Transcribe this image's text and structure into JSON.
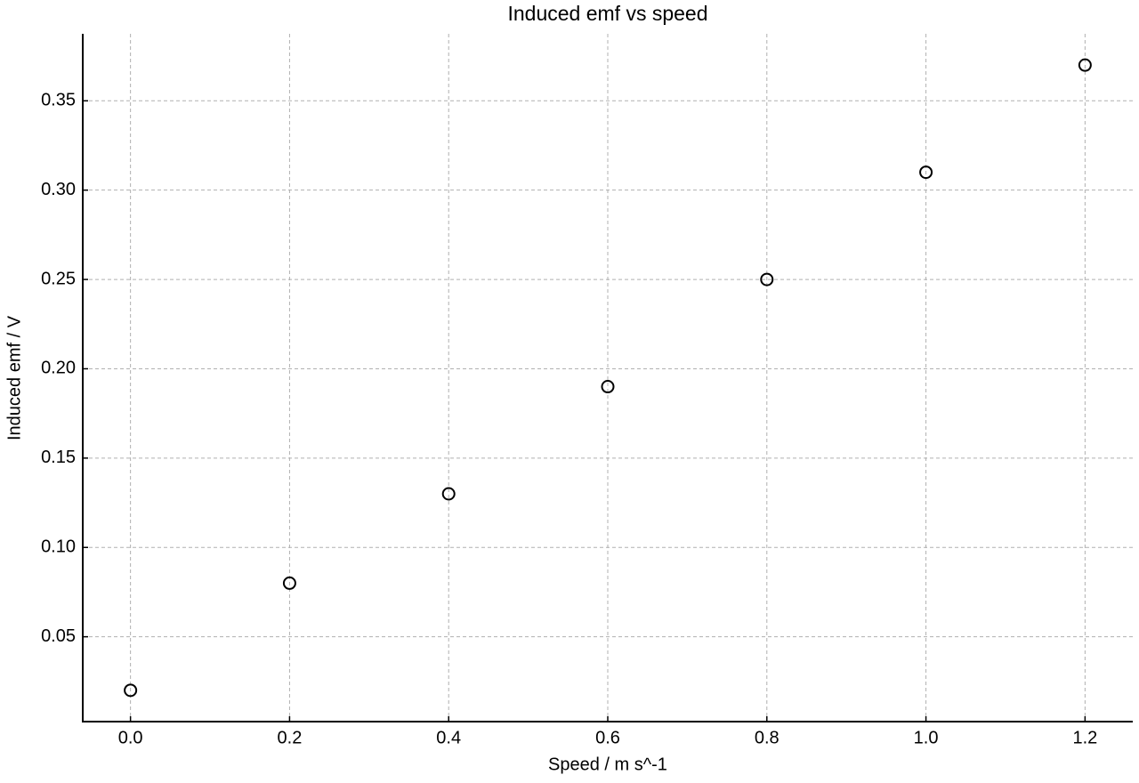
{
  "chart_data": {
    "type": "scatter",
    "title": "Induced emf vs speed",
    "x_label": "Speed / m s^-1",
    "y_label": "Induced emf / V",
    "x": [
      0.0,
      0.2,
      0.4,
      0.6,
      0.8,
      1.0,
      1.2
    ],
    "values": [
      0.02,
      0.08,
      0.13,
      0.19,
      0.25,
      0.31,
      0.37
    ],
    "color": "#000000",
    "xlim": [
      -0.06,
      1.26
    ],
    "ylim": [
      0.0025,
      0.3875
    ],
    "xticks": [
      {
        "value": 0,
        "label": "0.0"
      },
      0.2,
      0.4,
      0.6,
      0.8,
      {
        "value": 1,
        "label": "1.0"
      },
      1.2
    ],
    "yticks": [
      0.05,
      {
        "value": 0.1,
        "label": "0.10"
      },
      0.15,
      {
        "value": 0.2,
        "label": "0.20"
      },
      0.25,
      {
        "value": 0.3,
        "label": "0.30"
      },
      0.35
    ],
    "grid": true
  }
}
